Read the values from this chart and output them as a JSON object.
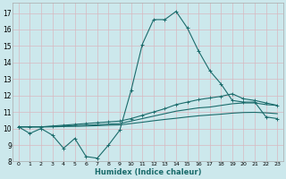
{
  "xlabel": "Humidex (Indice chaleur)",
  "bg_color": "#cce8ec",
  "grid_color": "#b0d0d8",
  "line_color": "#1a6b6b",
  "xlim": [
    -0.5,
    23.5
  ],
  "ylim": [
    8,
    17.6
  ],
  "yticks": [
    8,
    9,
    10,
    11,
    12,
    13,
    14,
    15,
    16,
    17
  ],
  "xticks": [
    0,
    1,
    2,
    3,
    4,
    5,
    6,
    7,
    8,
    9,
    10,
    11,
    12,
    13,
    14,
    15,
    16,
    17,
    18,
    19,
    20,
    21,
    22,
    23
  ],
  "line1_x": [
    0,
    1,
    2,
    3,
    4,
    5,
    6,
    7,
    8,
    9,
    10,
    11,
    12,
    13,
    14,
    15,
    16,
    17,
    18,
    19,
    20,
    21,
    22,
    23
  ],
  "line1_y": [
    10.1,
    9.7,
    10.0,
    9.6,
    8.8,
    9.4,
    8.3,
    8.2,
    9.0,
    9.9,
    12.3,
    15.1,
    16.6,
    16.6,
    17.1,
    16.1,
    14.7,
    13.5,
    12.7,
    11.7,
    11.6,
    11.6,
    10.7,
    10.6
  ],
  "line2_x": [
    0,
    1,
    2,
    3,
    4,
    5,
    6,
    7,
    8,
    9,
    10,
    11,
    12,
    13,
    14,
    15,
    16,
    17,
    18,
    19,
    20,
    21,
    22,
    23
  ],
  "line2_y": [
    10.1,
    10.1,
    10.1,
    10.15,
    10.2,
    10.25,
    10.3,
    10.35,
    10.4,
    10.45,
    10.6,
    10.8,
    11.0,
    11.2,
    11.45,
    11.6,
    11.75,
    11.85,
    11.95,
    12.1,
    11.8,
    11.7,
    11.55,
    11.4
  ],
  "line3_x": [
    0,
    1,
    2,
    3,
    4,
    5,
    6,
    7,
    8,
    9,
    10,
    11,
    12,
    13,
    14,
    15,
    16,
    17,
    18,
    19,
    20,
    21,
    22,
    23
  ],
  "line3_y": [
    10.1,
    10.1,
    10.1,
    10.12,
    10.15,
    10.18,
    10.2,
    10.23,
    10.27,
    10.3,
    10.45,
    10.6,
    10.75,
    10.9,
    11.05,
    11.15,
    11.25,
    11.3,
    11.4,
    11.5,
    11.55,
    11.55,
    11.45,
    11.4
  ],
  "line4_x": [
    0,
    1,
    2,
    3,
    4,
    5,
    6,
    7,
    8,
    9,
    10,
    11,
    12,
    13,
    14,
    15,
    16,
    17,
    18,
    19,
    20,
    21,
    22,
    23
  ],
  "line4_y": [
    10.1,
    10.1,
    10.1,
    10.1,
    10.12,
    10.13,
    10.15,
    10.17,
    10.2,
    10.22,
    10.3,
    10.38,
    10.47,
    10.55,
    10.62,
    10.7,
    10.77,
    10.82,
    10.87,
    10.93,
    10.97,
    10.98,
    10.95,
    10.9
  ]
}
